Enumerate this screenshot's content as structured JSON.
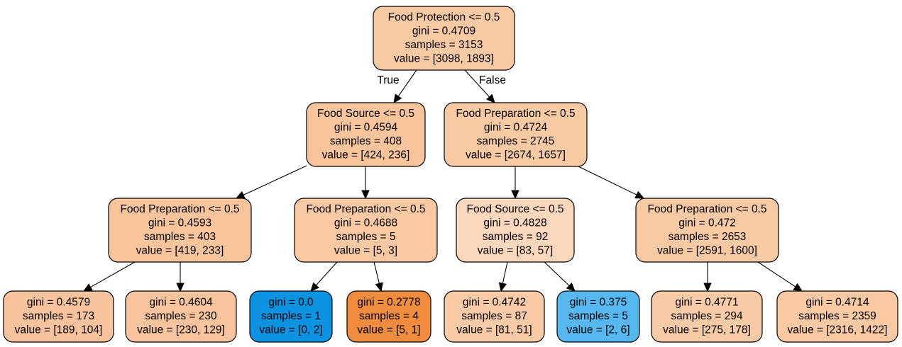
{
  "colors": {
    "orange_light": "#fdd9bb",
    "orange_mid": "#f8c6a0",
    "orange_strong": "#f7c49c",
    "orange_deep": "#ef8c3e",
    "blue_strong": "#0b93e2",
    "blue_light": "#56b8ef",
    "border": "#000000"
  },
  "nodes": [
    {
      "id": "n0",
      "name": "root-node",
      "lines": [
        "Food Protection <= 0.5",
        "gini = 0.4709",
        "samples = 3153",
        "value = [3098, 1893]"
      ],
      "fill": "#f8ca a4"
    },
    {
      "id": "n1",
      "name": "node-food-source-left",
      "lines": [
        "Food Source <= 0.5",
        "gini = 0.4594",
        "samples = 408",
        "value = [424, 236]"
      ],
      "fill": "#f7c49c"
    },
    {
      "id": "n2",
      "name": "node-food-preparation-right",
      "lines": [
        "Food Preparation <= 0.5",
        "gini = 0.4724",
        "samples = 2745",
        "value = [2674, 1657]"
      ],
      "fill": "#f8caa4"
    },
    {
      "id": "n3",
      "name": "node-food-preparation-ll",
      "lines": [
        "Food Preparation <= 0.5",
        "gini = 0.4593",
        "samples = 403",
        "value = [419, 233]"
      ],
      "fill": "#f7c49c"
    },
    {
      "id": "n4",
      "name": "node-food-preparation-lr",
      "lines": [
        "Food Preparation <= 0.5",
        "gini = 0.4688",
        "samples = 5",
        "value = [5, 3]"
      ],
      "fill": "#f8c9a3"
    },
    {
      "id": "n5",
      "name": "node-food-source-rl",
      "lines": [
        "Food Source <= 0.5",
        "gini = 0.4828",
        "samples = 92",
        "value = [83, 57]"
      ],
      "fill": "#fbd7bb"
    },
    {
      "id": "n6",
      "name": "node-food-preparation-rr",
      "lines": [
        "Food Preparation <= 0.5",
        "gini = 0.472",
        "samples = 2653",
        "value = [2591, 1600]"
      ],
      "fill": "#f8caa4"
    },
    {
      "id": "n7",
      "name": "leaf-1",
      "lines": [
        "gini = 0.4579",
        "samples = 173",
        "value = [189, 104]"
      ],
      "fill": "#f6c39c"
    },
    {
      "id": "n8",
      "name": "leaf-2",
      "lines": [
        "gini = 0.4604",
        "samples = 230",
        "value = [230, 129]"
      ],
      "fill": "#f7c49d"
    },
    {
      "id": "n9",
      "name": "leaf-3",
      "lines": [
        "gini = 0.0",
        "samples = 1",
        "value = [0, 2]"
      ],
      "fill": "#0b93e2"
    },
    {
      "id": "n10",
      "name": "leaf-4",
      "lines": [
        "gini = 0.2778",
        "samples = 4",
        "value = [5, 1]"
      ],
      "fill": "#ef8c3e"
    },
    {
      "id": "n11",
      "name": "leaf-5",
      "lines": [
        "gini = 0.4742",
        "samples = 87",
        "value = [81, 51]"
      ],
      "fill": "#f8caa5"
    },
    {
      "id": "n12",
      "name": "leaf-6",
      "lines": [
        "gini = 0.375",
        "samples = 5",
        "value = [2, 6]"
      ],
      "fill": "#56b8ef"
    },
    {
      "id": "n13",
      "name": "leaf-7",
      "lines": [
        "gini = 0.4771",
        "samples = 294",
        "value = [275, 178]"
      ],
      "fill": "#f8cba7"
    },
    {
      "id": "n14",
      "name": "leaf-8",
      "lines": [
        "gini = 0.4714",
        "samples = 2359",
        "value = [2316, 1422]"
      ],
      "fill": "#f8c9a3"
    }
  ],
  "edges": [
    {
      "from": "n0",
      "to": "n1",
      "label": "True"
    },
    {
      "from": "n0",
      "to": "n2",
      "label": "False"
    },
    {
      "from": "n1",
      "to": "n3",
      "label": ""
    },
    {
      "from": "n1",
      "to": "n4",
      "label": ""
    },
    {
      "from": "n2",
      "to": "n5",
      "label": ""
    },
    {
      "from": "n2",
      "to": "n6",
      "label": ""
    },
    {
      "from": "n3",
      "to": "n7",
      "label": ""
    },
    {
      "from": "n3",
      "to": "n8",
      "label": ""
    },
    {
      "from": "n4",
      "to": "n9",
      "label": ""
    },
    {
      "from": "n4",
      "to": "n10",
      "label": ""
    },
    {
      "from": "n5",
      "to": "n11",
      "label": ""
    },
    {
      "from": "n5",
      "to": "n12",
      "label": ""
    },
    {
      "from": "n6",
      "to": "n13",
      "label": ""
    },
    {
      "from": "n6",
      "to": "n14",
      "label": ""
    }
  ]
}
